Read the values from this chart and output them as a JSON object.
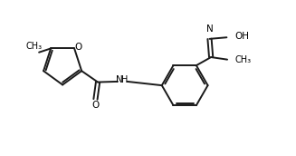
{
  "bg_color": "#ffffff",
  "line_color": "#1a1a1a",
  "line_width": 1.4,
  "font_size": 7.5,
  "figsize": [
    3.27,
    1.72
  ],
  "dpi": 100,
  "xlim": [
    0,
    9.5
  ],
  "ylim": [
    0,
    5.2
  ]
}
